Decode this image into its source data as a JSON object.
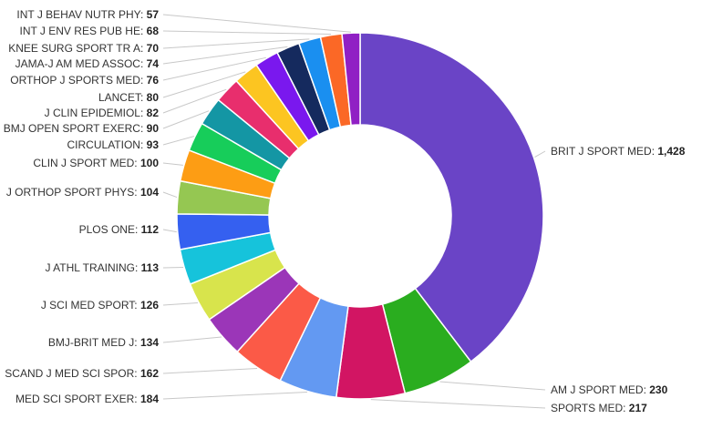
{
  "chart_data": {
    "type": "pie",
    "donut": true,
    "legend": "none",
    "series": [
      {
        "category": "BRIT J SPORT MED",
        "label": "1,428",
        "value": 1428,
        "color": "#6a44c6"
      },
      {
        "category": "AM J SPORT MED",
        "label": "230",
        "value": 230,
        "color": "#2aad1f"
      },
      {
        "category": "SPORTS MED",
        "label": "217",
        "value": 217,
        "color": "#d21563"
      },
      {
        "category": "MED SCI SPORT EXER",
        "label": "184",
        "value": 184,
        "color": "#6399f2"
      },
      {
        "category": "SCAND J MED SCI SPOR",
        "label": "162",
        "value": 162,
        "color": "#fb5a47"
      },
      {
        "category": "BMJ-BRIT MED J",
        "label": "134",
        "value": 134,
        "color": "#9b36b8"
      },
      {
        "category": "J SCI MED SPORT",
        "label": "126",
        "value": 126,
        "color": "#d8e44c"
      },
      {
        "category": "J ATHL TRAINING",
        "label": "113",
        "value": 113,
        "color": "#16c3db"
      },
      {
        "category": "PLOS ONE",
        "label": "112",
        "value": 112,
        "color": "#3560f0"
      },
      {
        "category": "J ORTHOP SPORT PHYS",
        "label": "104",
        "value": 104,
        "color": "#95c752"
      },
      {
        "category": "CLIN J SPORT MED",
        "label": "100",
        "value": 100,
        "color": "#fd9d14"
      },
      {
        "category": "CIRCULATION",
        "label": "93",
        "value": 93,
        "color": "#17cd5a"
      },
      {
        "category": "BMJ OPEN SPORT EXERC",
        "label": "90",
        "value": 90,
        "color": "#1496a4"
      },
      {
        "category": "J CLIN EPIDEMIOL",
        "label": "82",
        "value": 82,
        "color": "#e82e6d"
      },
      {
        "category": "LANCET",
        "label": "80",
        "value": 80,
        "color": "#fcc521"
      },
      {
        "category": "ORTHOP J SPORTS MED",
        "label": "76",
        "value": 76,
        "color": "#7a18ee"
      },
      {
        "category": "JAMA-J AM MED ASSOC",
        "label": "74",
        "value": 74,
        "color": "#152a5e"
      },
      {
        "category": "KNEE SURG SPORT TR A",
        "label": "70",
        "value": 70,
        "color": "#1a8ff0"
      },
      {
        "category": "INT J ENV RES PUB HE",
        "label": "68",
        "value": 68,
        "color": "#fb6826"
      },
      {
        "category": "INT J BEHAV NUTR PHY",
        "label": "57",
        "value": 57,
        "color": "#9020c4"
      }
    ]
  }
}
